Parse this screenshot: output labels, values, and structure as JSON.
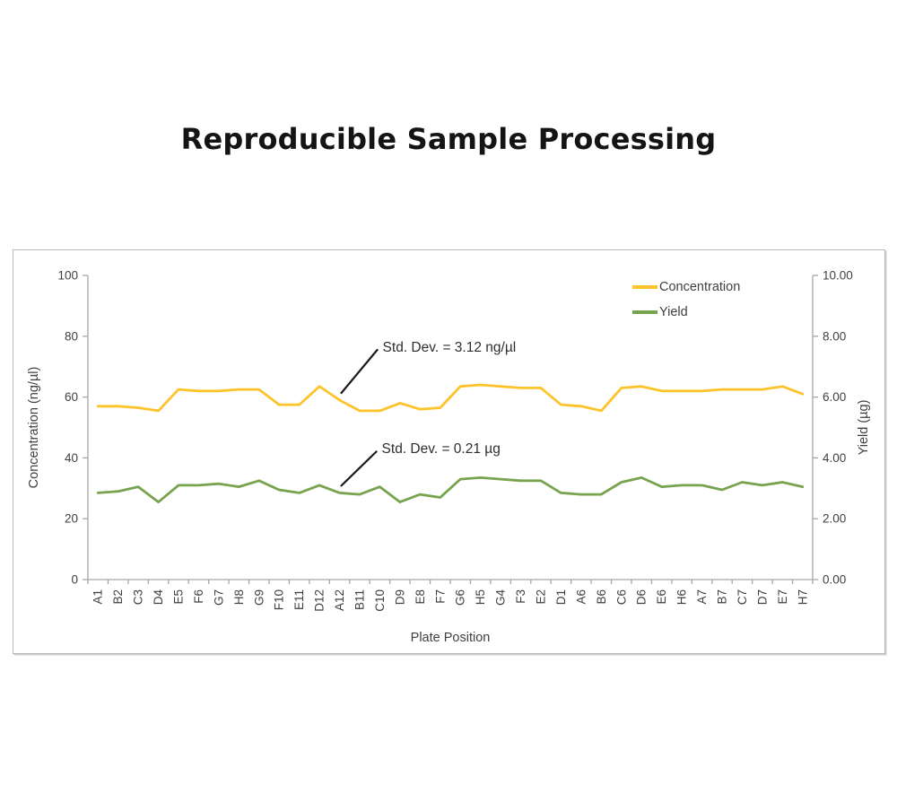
{
  "page": {
    "title": "Reproducible Sample Processing"
  },
  "chart_data": {
    "type": "line",
    "title": "Reproducible Sample Processing",
    "xlabel": "Plate Position",
    "ylabel_left": "Concentration (ng/µl)",
    "ylabel_right": "Yield (µg)",
    "grid": false,
    "legend_position": "top-right-inside",
    "y_left_axis": {
      "min": 0,
      "max": 100,
      "tick_labels": [
        "0",
        "20",
        "40",
        "60",
        "80",
        "100"
      ]
    },
    "y_right_axis": {
      "min": 0,
      "max": 10,
      "tick_labels": [
        "0.00",
        "2.00",
        "4.00",
        "6.00",
        "8.00",
        "10.00"
      ]
    },
    "categories": [
      "A1",
      "B2",
      "C3",
      "D4",
      "E5",
      "F6",
      "G7",
      "H8",
      "G9",
      "F10",
      "E11",
      "D12",
      "A12",
      "B11",
      "C10",
      "D9",
      "E8",
      "F7",
      "G6",
      "H5",
      "G4",
      "F3",
      "E2",
      "D1",
      "A6",
      "B6",
      "C6",
      "D6",
      "E6",
      "H6",
      "A7",
      "B7",
      "C7",
      "D7",
      "E7",
      "H7"
    ],
    "series": [
      {
        "name": "Concentration",
        "axis": "left",
        "color": "#FDC32B",
        "values": [
          57,
          57,
          56.5,
          55.5,
          62.5,
          62,
          62,
          62.5,
          62.5,
          57.5,
          57.5,
          63.5,
          59,
          55.5,
          55.5,
          58,
          56,
          56.5,
          63.5,
          64,
          63.5,
          63,
          63,
          57.5,
          57,
          55.5,
          63,
          63.5,
          62,
          62,
          62,
          62.5,
          62.5,
          62.5,
          63.5,
          61
        ]
      },
      {
        "name": "Yield",
        "axis": "right",
        "color": "#78A34E",
        "values": [
          2.85,
          2.9,
          3.05,
          2.55,
          3.1,
          3.1,
          3.15,
          3.05,
          3.25,
          2.95,
          2.85,
          3.1,
          2.85,
          2.8,
          3.05,
          2.55,
          2.8,
          2.7,
          3.3,
          3.35,
          3.3,
          3.25,
          3.25,
          2.85,
          2.8,
          2.8,
          3.2,
          3.35,
          3.05,
          3.1,
          3.1,
          2.95,
          3.2,
          3.1,
          3.2,
          3.05
        ]
      }
    ],
    "annotations": [
      {
        "text": "Std. Dev. = 3.12 ng/µl",
        "series": "Concentration",
        "anchor": "A12"
      },
      {
        "text": "Std. Dev. = 0.21 µg",
        "series": "Yield",
        "anchor": "A12"
      }
    ],
    "axis_color": "#A6A6A6",
    "text_color": "#3F3F3F",
    "leader_color": "#1A1A1A"
  }
}
